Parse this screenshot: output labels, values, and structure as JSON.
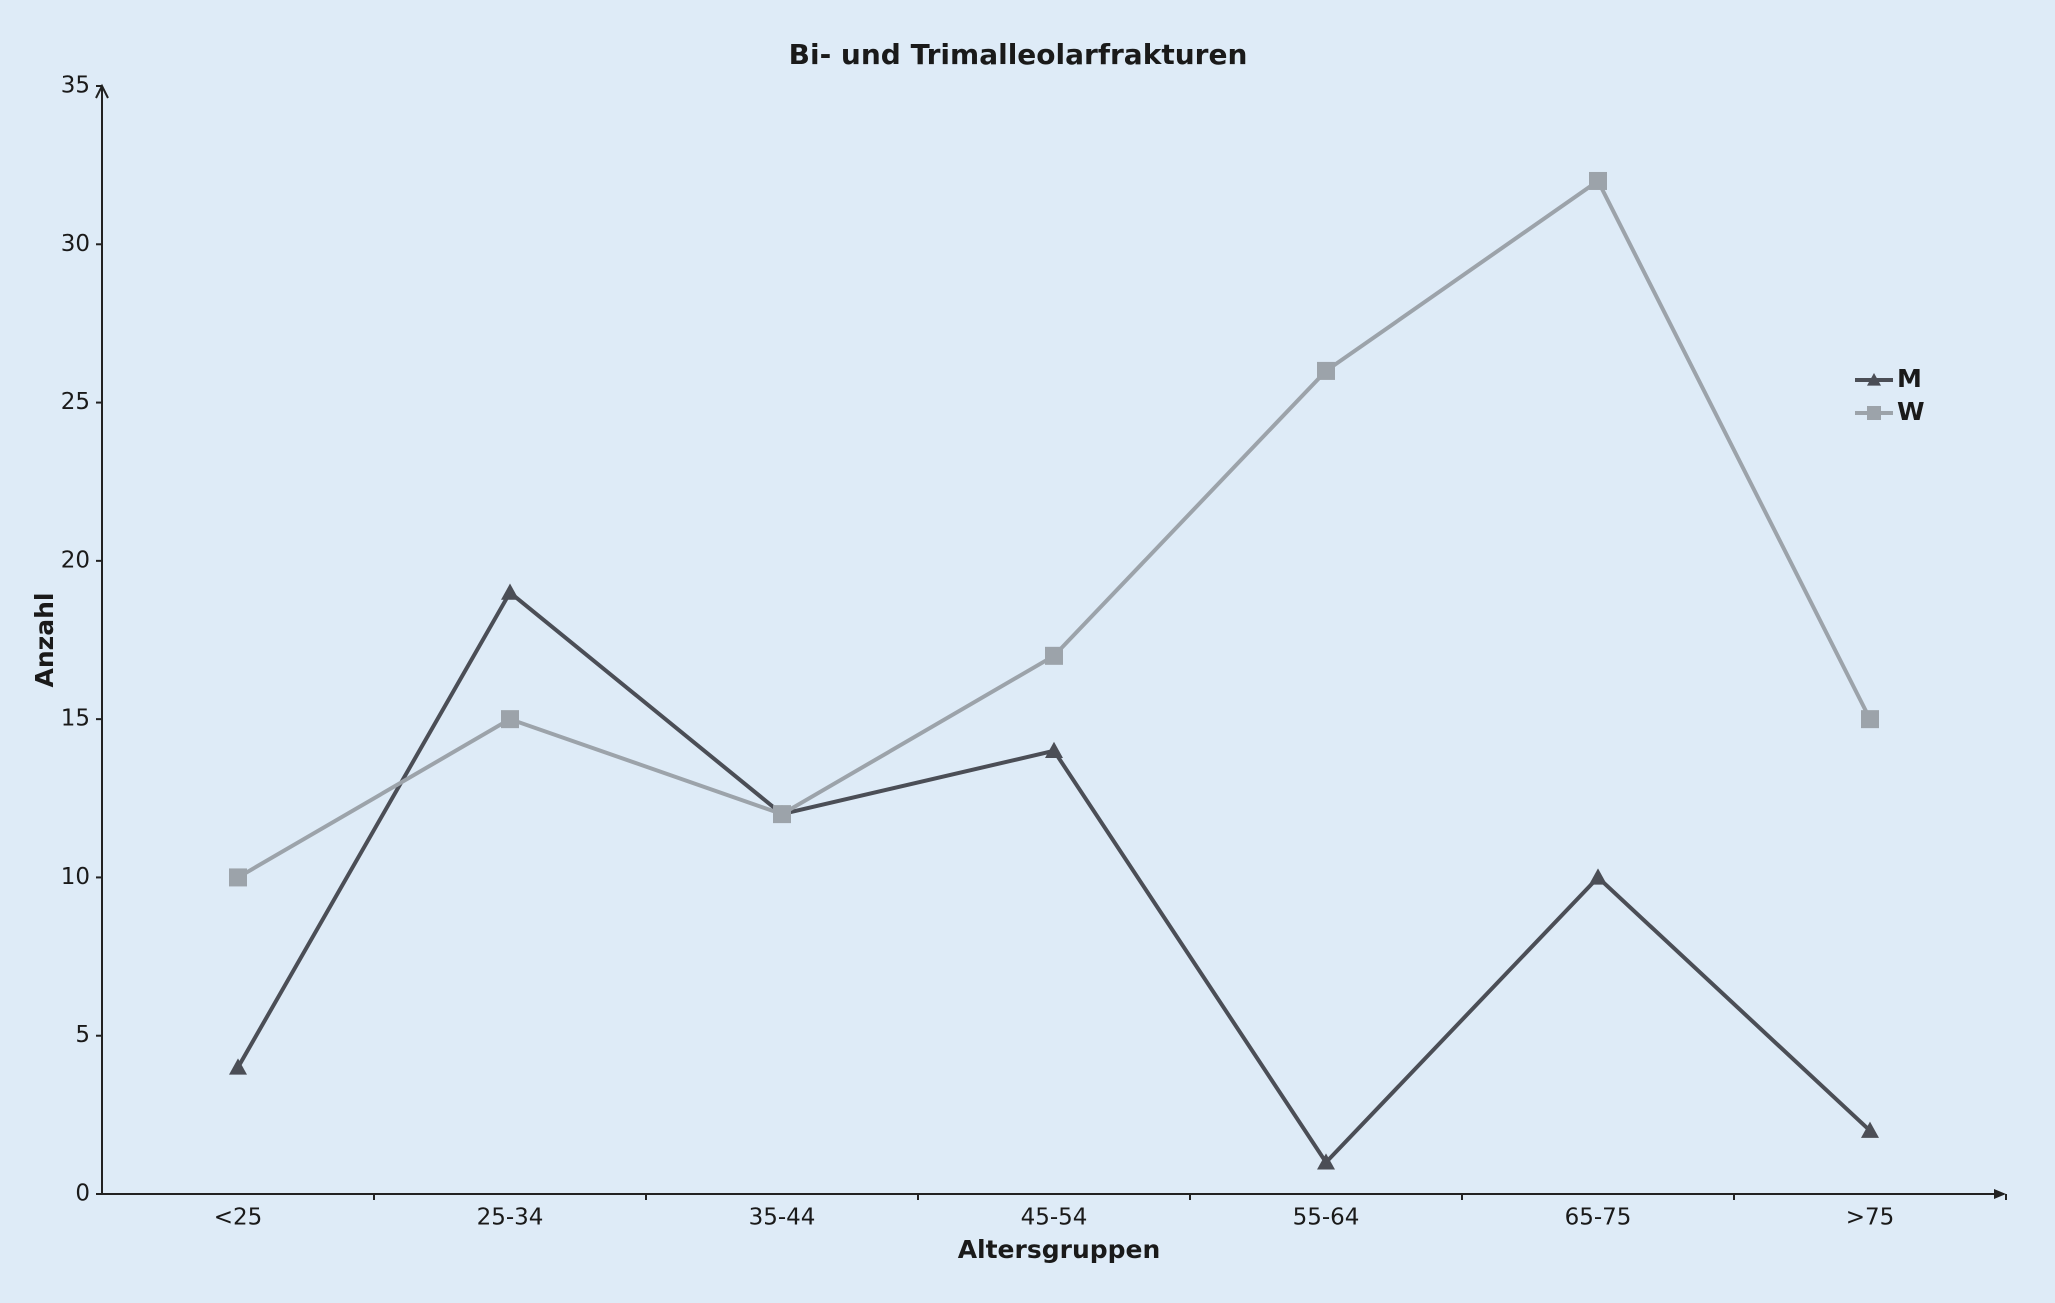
{
  "chart_data": {
    "type": "line",
    "title": "Bi- und Trimalleolarfrakturen",
    "x_label": "Altersgruppen",
    "y_label": "Anzahl",
    "categories": [
      "<25",
      "25-34",
      "35-44",
      "45-54",
      "55-64",
      "65-75",
      ">75"
    ],
    "series": [
      {
        "name": "M",
        "color": "#4b4e56",
        "marker": "triangle",
        "values": [
          4,
          19,
          12,
          14,
          1,
          10,
          2
        ]
      },
      {
        "name": "W",
        "color": "#9ca3aa",
        "marker": "square",
        "values": [
          10,
          15,
          12,
          17,
          26,
          32,
          15
        ]
      }
    ],
    "ylim": [
      0,
      35
    ],
    "yticks": [
      0,
      5,
      10,
      15,
      20,
      25,
      30,
      35
    ],
    "grid": false,
    "legend": "right"
  }
}
